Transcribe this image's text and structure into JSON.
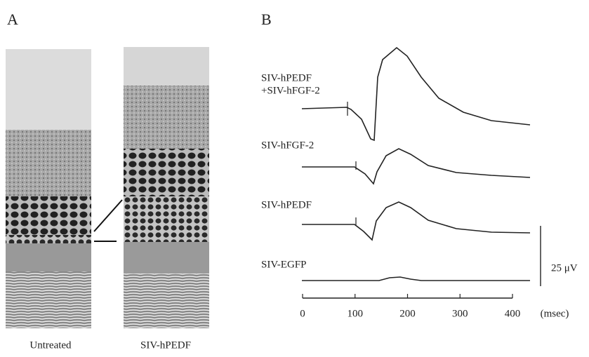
{
  "panel_a": {
    "label": "A",
    "captions": [
      "Untreated",
      "SIV-hPEDF"
    ]
  },
  "panel_b": {
    "label": "B",
    "traces": [
      {
        "label_lines": [
          "SIV-hPEDF",
          "+SIV-hFGF-2"
        ]
      },
      {
        "label_lines": [
          "SIV-hFGF-2"
        ]
      },
      {
        "label_lines": [
          "SIV-hPEDF"
        ]
      },
      {
        "label_lines": [
          "SIV-EGFP"
        ]
      }
    ],
    "scale_bar": "25 μV",
    "x_axis": {
      "ticks": [
        "0",
        "100",
        "200",
        "300",
        "400"
      ],
      "unit": "(msec)"
    }
  }
}
